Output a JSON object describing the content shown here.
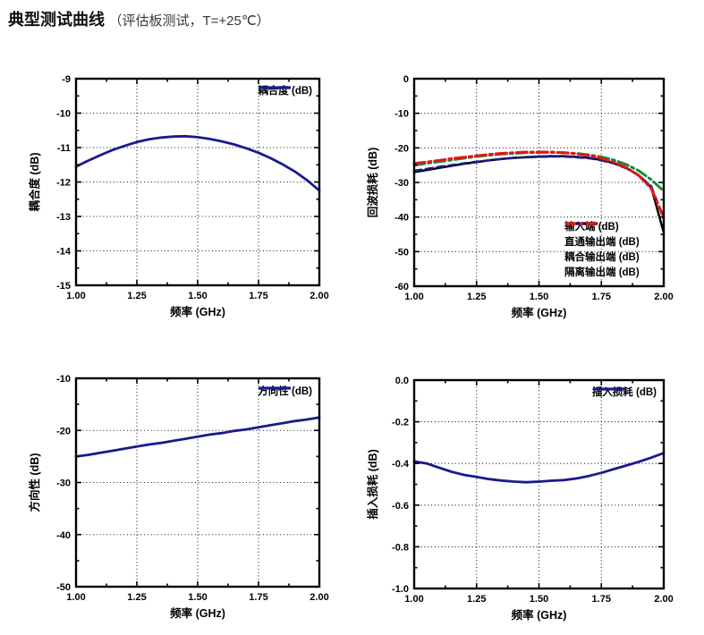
{
  "page": {
    "title_main": "典型测试曲线",
    "title_sub": "（评估板测试，T=+25℃）"
  },
  "colors": {
    "navy": "#1a1a8c",
    "black": "#000000",
    "green": "#109030",
    "red": "#e81418",
    "axis": "#000000"
  },
  "chart_data": [
    {
      "id": "coupling",
      "type": "line",
      "ylabel": "耦合度 (dB)",
      "xlabel": "频率 (GHz)",
      "xlim": [
        1.0,
        2.0
      ],
      "ylim": [
        -15,
        -9
      ],
      "x_ticks": [
        {
          "v": 1.0,
          "label": "1.00"
        },
        {
          "v": 1.25,
          "label": "1.25"
        },
        {
          "v": 1.5,
          "label": "1.50"
        },
        {
          "v": 1.75,
          "label": "1.75"
        },
        {
          "v": 2.0,
          "label": "2.00"
        }
      ],
      "y_ticks": [
        {
          "v": -9,
          "label": "-9"
        },
        {
          "v": -10,
          "label": "-10"
        },
        {
          "v": -11,
          "label": "-11"
        },
        {
          "v": -12,
          "label": "-12"
        },
        {
          "v": -13,
          "label": "-13"
        },
        {
          "v": -14,
          "label": "-14"
        },
        {
          "v": -15,
          "label": "-15"
        }
      ],
      "legend_position": "top-right",
      "grid": true,
      "x": [
        1.0,
        1.05,
        1.1,
        1.15,
        1.2,
        1.25,
        1.3,
        1.35,
        1.4,
        1.45,
        1.5,
        1.55,
        1.6,
        1.65,
        1.7,
        1.75,
        1.8,
        1.85,
        1.9,
        1.95,
        2.0
      ],
      "series": [
        {
          "name": "耦合度 (dB)",
          "color": "navy",
          "style": "solid",
          "width": 2.8,
          "values": [
            -11.55,
            -11.38,
            -11.22,
            -11.07,
            -10.95,
            -10.84,
            -10.76,
            -10.71,
            -10.68,
            -10.67,
            -10.7,
            -10.75,
            -10.82,
            -10.91,
            -11.02,
            -11.15,
            -11.31,
            -11.49,
            -11.7,
            -11.95,
            -12.25
          ]
        }
      ]
    },
    {
      "id": "return-loss",
      "type": "line",
      "ylabel": "回波损耗 (dB)",
      "xlabel": "频率 (GHz)",
      "xlim": [
        1.0,
        2.0
      ],
      "ylim": [
        -60,
        0
      ],
      "x_ticks": [
        {
          "v": 1.0,
          "label": "1.00"
        },
        {
          "v": 1.25,
          "label": "1.25"
        },
        {
          "v": 1.5,
          "label": "1.50"
        },
        {
          "v": 1.75,
          "label": "1.75"
        },
        {
          "v": 2.0,
          "label": "2.00"
        }
      ],
      "y_ticks": [
        {
          "v": 0,
          "label": "0"
        },
        {
          "v": -10,
          "label": "-10"
        },
        {
          "v": -20,
          "label": "-20"
        },
        {
          "v": -30,
          "label": "-30"
        },
        {
          "v": -40,
          "label": "-40"
        },
        {
          "v": -50,
          "label": "-50"
        },
        {
          "v": -60,
          "label": "-60"
        }
      ],
      "legend_position": "bottom-right-list",
      "grid": true,
      "x": [
        1.0,
        1.05,
        1.1,
        1.15,
        1.2,
        1.25,
        1.3,
        1.35,
        1.4,
        1.45,
        1.5,
        1.55,
        1.6,
        1.65,
        1.7,
        1.75,
        1.8,
        1.85,
        1.9,
        1.95,
        2.0
      ],
      "series": [
        {
          "name": "输入端 (dB)",
          "color": "black",
          "style": "solid",
          "width": 2.5,
          "values": [
            -27.0,
            -26.4,
            -25.8,
            -25.2,
            -24.6,
            -24.1,
            -23.6,
            -23.2,
            -22.9,
            -22.7,
            -22.5,
            -22.4,
            -22.4,
            -22.6,
            -22.9,
            -23.5,
            -24.4,
            -25.8,
            -27.9,
            -31.5,
            -44.5
          ]
        },
        {
          "name": "直通输出端 (dB)",
          "color": "navy",
          "style": "dash",
          "width": 2.6,
          "values": [
            -26.6,
            -26.1,
            -25.5,
            -25.0,
            -24.5,
            -24.0,
            -23.6,
            -23.2,
            -22.9,
            -22.7,
            -22.6,
            -22.5,
            -22.5,
            -22.7,
            -23.0,
            -23.6,
            -24.5,
            -25.9,
            -27.9,
            -31.2,
            -40.5
          ]
        },
        {
          "name": "耦合输出端 (dB)",
          "color": "green",
          "style": "dash-dot",
          "width": 3,
          "values": [
            -25.0,
            -24.5,
            -24.0,
            -23.5,
            -23.0,
            -22.5,
            -22.1,
            -21.8,
            -21.6,
            -21.4,
            -21.3,
            -21.3,
            -21.4,
            -21.6,
            -22.0,
            -22.6,
            -23.5,
            -24.8,
            -26.6,
            -29.2,
            -32.5
          ]
        },
        {
          "name": "隔离输出端 (dB)",
          "color": "red",
          "style": "dash-dot",
          "width": 3,
          "values": [
            -24.5,
            -24.1,
            -23.6,
            -23.1,
            -22.7,
            -22.3,
            -21.9,
            -21.6,
            -21.4,
            -21.2,
            -21.2,
            -21.2,
            -21.4,
            -21.7,
            -22.2,
            -23.0,
            -24.1,
            -25.7,
            -28.0,
            -31.8,
            -40.0
          ]
        }
      ]
    },
    {
      "id": "directivity",
      "type": "line",
      "ylabel": "方向性 (dB)",
      "xlabel": "频率 (GHz)",
      "xlim": [
        1.0,
        2.0
      ],
      "ylim": [
        -50,
        -10
      ],
      "x_ticks": [
        {
          "v": 1.0,
          "label": "1.00"
        },
        {
          "v": 1.25,
          "label": "1.25"
        },
        {
          "v": 1.5,
          "label": "1.50"
        },
        {
          "v": 1.75,
          "label": "1.75"
        },
        {
          "v": 2.0,
          "label": "2.00"
        }
      ],
      "y_ticks": [
        {
          "v": -10,
          "label": "-10"
        },
        {
          "v": -20,
          "label": "-20"
        },
        {
          "v": -30,
          "label": "-30"
        },
        {
          "v": -40,
          "label": "-40"
        },
        {
          "v": -50,
          "label": "-50"
        }
      ],
      "legend_position": "top-right",
      "grid": true,
      "x": [
        1.0,
        1.05,
        1.1,
        1.15,
        1.2,
        1.25,
        1.3,
        1.35,
        1.4,
        1.45,
        1.5,
        1.55,
        1.6,
        1.65,
        1.7,
        1.75,
        1.8,
        1.85,
        1.9,
        1.95,
        2.0
      ],
      "series": [
        {
          "name": "方向性 (dB)",
          "color": "navy",
          "style": "solid",
          "width": 2.8,
          "values": [
            -25.0,
            -24.7,
            -24.3,
            -23.9,
            -23.5,
            -23.1,
            -22.7,
            -22.4,
            -22.0,
            -21.6,
            -21.2,
            -20.8,
            -20.5,
            -20.1,
            -19.8,
            -19.4,
            -19.0,
            -18.6,
            -18.2,
            -17.9,
            -17.5
          ]
        }
      ]
    },
    {
      "id": "insertion-loss",
      "type": "line",
      "ylabel": "插入损耗 (dB)",
      "xlabel": "频率 (GHz)",
      "xlim": [
        1.0,
        2.0
      ],
      "ylim": [
        -1.0,
        0.0
      ],
      "x_ticks": [
        {
          "v": 1.0,
          "label": "1.00"
        },
        {
          "v": 1.25,
          "label": "1.25"
        },
        {
          "v": 1.5,
          "label": "1.50"
        },
        {
          "v": 1.75,
          "label": "1.75"
        },
        {
          "v": 2.0,
          "label": "2.00"
        }
      ],
      "y_ticks": [
        {
          "v": 0.0,
          "label": "0.0"
        },
        {
          "v": -0.2,
          "label": "-0.2"
        },
        {
          "v": -0.4,
          "label": "-0.4"
        },
        {
          "v": -0.6,
          "label": "-0.6"
        },
        {
          "v": -0.8,
          "label": "-0.8"
        },
        {
          "v": -1.0,
          "label": "-1.0"
        }
      ],
      "legend_position": "top-right",
      "grid": true,
      "x": [
        1.0,
        1.05,
        1.1,
        1.15,
        1.2,
        1.25,
        1.3,
        1.35,
        1.4,
        1.45,
        1.5,
        1.55,
        1.6,
        1.65,
        1.7,
        1.75,
        1.8,
        1.85,
        1.9,
        1.95,
        2.0
      ],
      "series": [
        {
          "name": "插入损耗 (dB)",
          "color": "navy",
          "style": "solid",
          "width": 2.8,
          "values": [
            -0.39,
            -0.4,
            -0.42,
            -0.44,
            -0.455,
            -0.465,
            -0.475,
            -0.482,
            -0.487,
            -0.49,
            -0.487,
            -0.483,
            -0.48,
            -0.472,
            -0.46,
            -0.445,
            -0.427,
            -0.41,
            -0.392,
            -0.372,
            -0.35
          ]
        }
      ]
    }
  ]
}
